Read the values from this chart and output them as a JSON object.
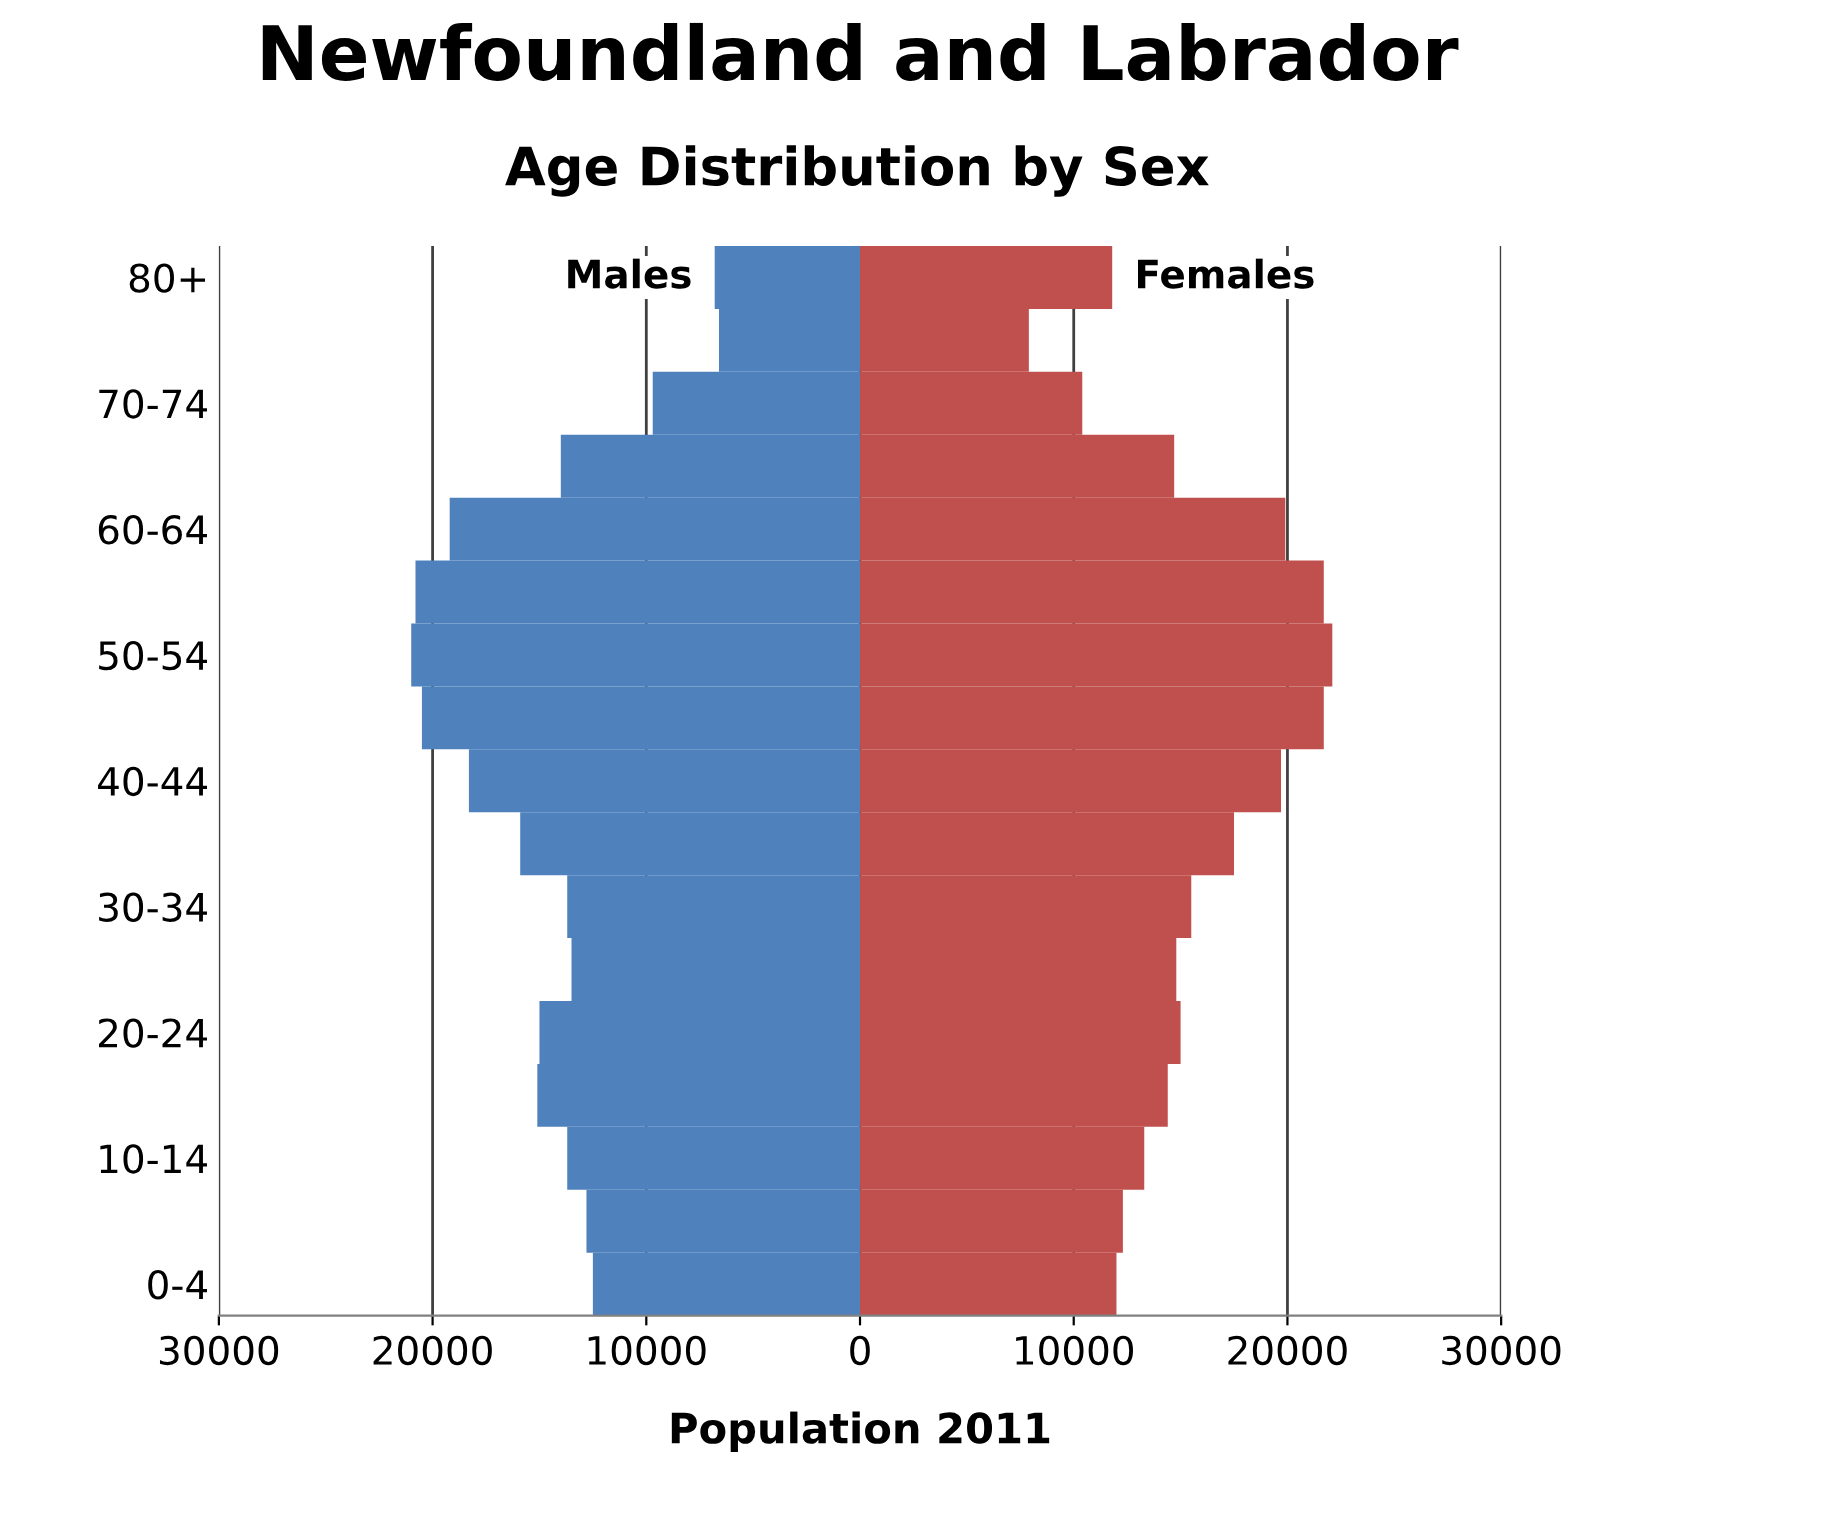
{
  "chart_data": {
    "type": "bar",
    "orientation": "horizontal",
    "stacked": true,
    "title": "Newfoundland and Labrador",
    "subtitle": "Age Distribution by Sex",
    "xlabel": "Population 2011",
    "categories": [
      "80+",
      null,
      "70-74",
      null,
      "60-64",
      null,
      "50-54",
      null,
      "40-44",
      null,
      "30-34",
      null,
      "20-24",
      null,
      "10-14",
      null,
      "0-4"
    ],
    "series": [
      {
        "name": "Males",
        "color": "#4f81bd",
        "values": [
          -6800,
          -6600,
          -9700,
          -14000,
          -19200,
          -20800,
          -21000,
          -20500,
          -18300,
          -15900,
          -13700,
          -13500,
          -15000,
          -15100,
          -13700,
          -12800,
          -12500
        ]
      },
      {
        "name": "Females",
        "color": "#c0504d",
        "values": [
          11800,
          7900,
          10400,
          14700,
          19900,
          21700,
          22100,
          21700,
          19700,
          17500,
          15500,
          14800,
          15000,
          14400,
          13300,
          12300,
          12000
        ]
      }
    ],
    "xlim": [
      -30000,
      30000
    ],
    "xticks": [
      {
        "value": -30000,
        "label": "30000"
      },
      {
        "value": -20000,
        "label": "20000"
      },
      {
        "value": -10000,
        "label": "10000"
      },
      0,
      10000,
      20000,
      30000
    ],
    "grid": "x",
    "legend": false
  }
}
